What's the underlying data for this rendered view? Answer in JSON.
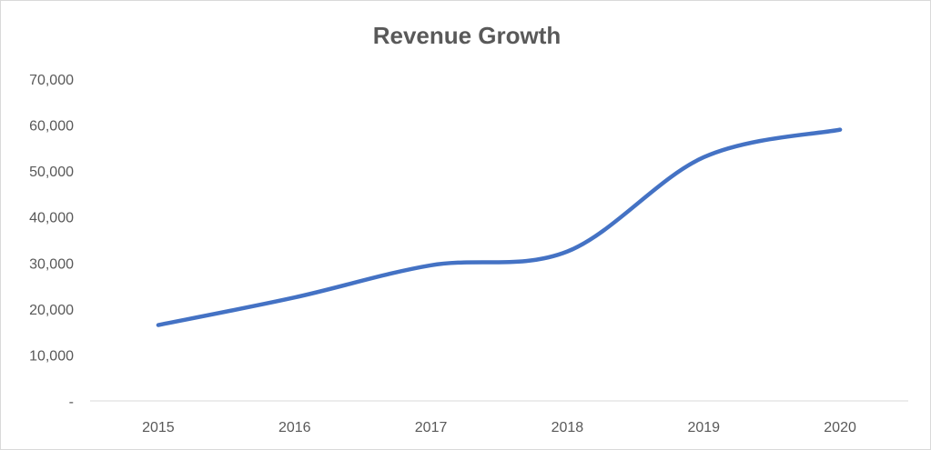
{
  "chart_data": {
    "type": "line",
    "title": "Revenue Growth",
    "xlabel": "",
    "ylabel": "",
    "categories": [
      "2015",
      "2016",
      "2017",
      "2018",
      "2019",
      "2020"
    ],
    "series": [
      {
        "values": [
          16500,
          22500,
          29500,
          32500,
          53000,
          59000
        ]
      }
    ],
    "ylim": [
      0,
      70000
    ],
    "yticks": [
      0,
      10000,
      20000,
      30000,
      40000,
      50000,
      60000,
      70000
    ],
    "ytick_labels": [
      "-",
      "10,000",
      "20,000",
      "30,000",
      "40,000",
      "50,000",
      "60,000",
      "70,000"
    ],
    "grid": false,
    "legend": "none",
    "line_color": "#4472c4",
    "axis_color": "#d9d9d9",
    "text_color": "#595959"
  }
}
